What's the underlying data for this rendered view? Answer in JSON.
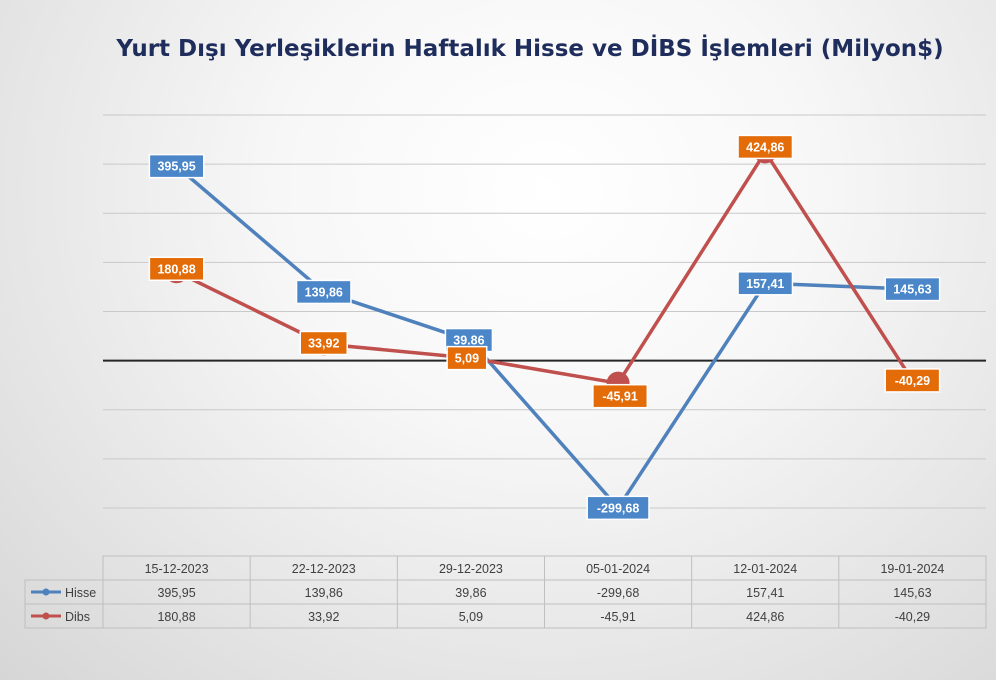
{
  "chart_data": {
    "type": "line",
    "title": "Yurt Dışı Yerleşiklerin Haftalık Hisse ve DİBS İşlemleri (Milyon$)",
    "categories": [
      "15-12-2023",
      "22-12-2023",
      "29-12-2023",
      "05-01-2024",
      "12-01-2024",
      "19-01-2024"
    ],
    "series": [
      {
        "name": "Hisse",
        "color": "#4f81bd",
        "values": [
          395.95,
          139.86,
          39.86,
          -299.68,
          157.41,
          145.63
        ],
        "labels": [
          "395,95",
          "139,86",
          "39.86",
          "-299,68",
          "157,41",
          "145,63"
        ],
        "table_values": [
          "395,95",
          "139,86",
          "39,86",
          "-299,68",
          "157,41",
          "145,63"
        ],
        "label_color": "#4a86c8"
      },
      {
        "name": "Dibs",
        "color": "#c0504d",
        "values": [
          180.88,
          33.92,
          5.09,
          -45.91,
          424.86,
          -40.29
        ],
        "labels": [
          "180,88",
          "33,92",
          "5,09",
          "-45,91",
          "424,86",
          "-40,29"
        ],
        "table_values": [
          "180,88",
          "33,92",
          "5,09",
          "-45,91",
          "424,86",
          "-40,29"
        ],
        "label_color": "#e36c09"
      }
    ],
    "ylim": [
      -300,
      500
    ],
    "grid": true,
    "legend": "data-table",
    "data_table": true
  }
}
